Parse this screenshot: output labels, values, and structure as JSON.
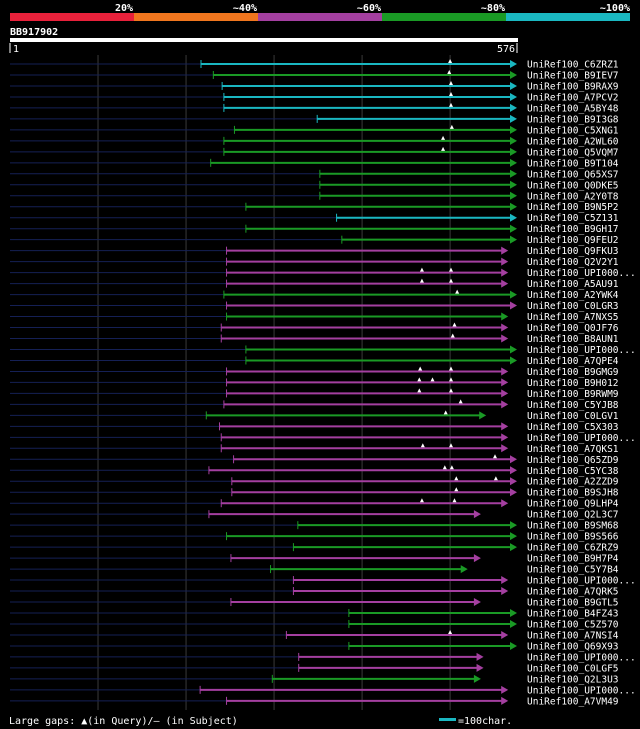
{
  "header": {
    "scale_labels": [
      "20%",
      "~40%",
      "~60%",
      "~80%",
      "~100%"
    ],
    "scale_colors": [
      "#e8213b",
      "#f0761e",
      "#a43fa0",
      "#1a9a25",
      "#1ab7c1"
    ],
    "query_id": "BB917902",
    "query_start": "1",
    "query_end": "576"
  },
  "footer": {
    "gaps_text": "Large gaps: ▲(in Query)/– (in Subject)",
    "scale_text": "=100char.",
    "scale_bar_color": "#1ab7c1"
  },
  "chart_data": {
    "type": "alignment-overview",
    "query_length": 576,
    "identity_colors": {
      "green": "#1a9a25",
      "cyan": "#1ab7c1",
      "magenta": "#a43fa0"
    },
    "hits": [
      {
        "id": "UniRef100_C6ZRZ1",
        "color": "cyan",
        "start": 217,
        "end": 576,
        "gaps": [
          500
        ]
      },
      {
        "id": "UniRef100_B9IEV7",
        "color": "green",
        "start": 231,
        "end": 576,
        "gaps": [
          499
        ]
      },
      {
        "id": "UniRef100_B9RAX9",
        "color": "cyan",
        "start": 241,
        "end": 576,
        "gaps": [
          501
        ]
      },
      {
        "id": "UniRef100_A7PCV2",
        "color": "cyan",
        "start": 243,
        "end": 576,
        "gaps": [
          501
        ]
      },
      {
        "id": "UniRef100_A5BY48",
        "color": "cyan",
        "start": 243,
        "end": 576,
        "gaps": [
          501
        ]
      },
      {
        "id": "UniRef100_B9I3G8",
        "color": "cyan",
        "start": 349,
        "end": 576,
        "gaps": []
      },
      {
        "id": "UniRef100_C5XNG1",
        "color": "green",
        "start": 255,
        "end": 576,
        "gaps": [
          502
        ]
      },
      {
        "id": "UniRef100_A2WL60",
        "color": "green",
        "start": 243,
        "end": 576,
        "gaps": [
          492
        ]
      },
      {
        "id": "UniRef100_Q5VQM7",
        "color": "green",
        "start": 243,
        "end": 576,
        "gaps": [
          492
        ]
      },
      {
        "id": "UniRef100_B9T104",
        "color": "green",
        "start": 228,
        "end": 576,
        "gaps": []
      },
      {
        "id": "UniRef100_Q65XS7",
        "color": "green",
        "start": 352,
        "end": 576,
        "gaps": []
      },
      {
        "id": "UniRef100_Q0DKE5",
        "color": "green",
        "start": 352,
        "end": 576,
        "gaps": []
      },
      {
        "id": "UniRef100_A2Y0T8",
        "color": "green",
        "start": 352,
        "end": 576,
        "gaps": []
      },
      {
        "id": "UniRef100_B9N5P2",
        "color": "green",
        "start": 268,
        "end": 576,
        "gaps": []
      },
      {
        "id": "UniRef100_C5Z131",
        "color": "cyan",
        "start": 371,
        "end": 576,
        "gaps": []
      },
      {
        "id": "UniRef100_B9GH17",
        "color": "green",
        "start": 268,
        "end": 576,
        "gaps": []
      },
      {
        "id": "UniRef100_Q9FEU2",
        "color": "green",
        "start": 377,
        "end": 576,
        "gaps": []
      },
      {
        "id": "UniRef100_Q9FKU3",
        "color": "magenta",
        "start": 246,
        "end": 566,
        "gaps": []
      },
      {
        "id": "UniRef100_Q2V2Y1",
        "color": "magenta",
        "start": 246,
        "end": 566,
        "gaps": []
      },
      {
        "id": "UniRef100_UPI000...",
        "color": "magenta",
        "start": 246,
        "end": 566,
        "gaps": [
          468,
          501
        ]
      },
      {
        "id": "UniRef100_A5AU91",
        "color": "magenta",
        "start": 246,
        "end": 566,
        "gaps": [
          468,
          501
        ]
      },
      {
        "id": "UniRef100_A2YWK4",
        "color": "green",
        "start": 243,
        "end": 576,
        "gaps": [
          508
        ]
      },
      {
        "id": "UniRef100_C0LGR3",
        "color": "magenta",
        "start": 246,
        "end": 576,
        "gaps": []
      },
      {
        "id": "UniRef100_A7NXS5",
        "color": "green",
        "start": 246,
        "end": 566,
        "gaps": []
      },
      {
        "id": "UniRef100_Q0JF76",
        "color": "magenta",
        "start": 240,
        "end": 566,
        "gaps": [
          505
        ]
      },
      {
        "id": "UniRef100_B8AUN1",
        "color": "magenta",
        "start": 240,
        "end": 566,
        "gaps": [
          503
        ]
      },
      {
        "id": "UniRef100_UPI000...",
        "color": "green",
        "start": 268,
        "end": 576,
        "gaps": []
      },
      {
        "id": "UniRef100_A7QPE4",
        "color": "green",
        "start": 268,
        "end": 576,
        "gaps": []
      },
      {
        "id": "UniRef100_B9GMG9",
        "color": "magenta",
        "start": 246,
        "end": 566,
        "gaps": [
          466,
          501
        ]
      },
      {
        "id": "UniRef100_B9H012",
        "color": "magenta",
        "start": 246,
        "end": 566,
        "gaps": [
          465,
          480,
          501
        ]
      },
      {
        "id": "UniRef100_B9RWM9",
        "color": "magenta",
        "start": 246,
        "end": 566,
        "gaps": [
          465,
          501
        ]
      },
      {
        "id": "UniRef100_C5YJB8",
        "color": "magenta",
        "start": 243,
        "end": 566,
        "gaps": [
          512
        ]
      },
      {
        "id": "UniRef100_C0LGV1",
        "color": "green",
        "start": 223,
        "end": 541,
        "gaps": [
          495
        ]
      },
      {
        "id": "UniRef100_C5X303",
        "color": "magenta",
        "start": 238,
        "end": 566,
        "gaps": []
      },
      {
        "id": "UniRef100_UPI000...",
        "color": "magenta",
        "start": 240,
        "end": 566,
        "gaps": []
      },
      {
        "id": "UniRef100_A7QKS1",
        "color": "magenta",
        "start": 240,
        "end": 566,
        "gaps": [
          469,
          501
        ]
      },
      {
        "id": "UniRef100_Q65ZD9",
        "color": "magenta",
        "start": 254,
        "end": 576,
        "gaps": [
          551
        ]
      },
      {
        "id": "UniRef100_C5YC38",
        "color": "magenta",
        "start": 226,
        "end": 576,
        "gaps": [
          494,
          502
        ]
      },
      {
        "id": "UniRef100_A2ZZD9",
        "color": "magenta",
        "start": 252,
        "end": 576,
        "gaps": [
          507,
          552
        ]
      },
      {
        "id": "UniRef100_B9SJH8",
        "color": "magenta",
        "start": 252,
        "end": 576,
        "gaps": [
          507
        ]
      },
      {
        "id": "UniRef100_Q9LHP4",
        "color": "magenta",
        "start": 240,
        "end": 566,
        "gaps": [
          468,
          505
        ]
      },
      {
        "id": "UniRef100_Q2L3C7",
        "color": "magenta",
        "start": 226,
        "end": 535,
        "gaps": []
      },
      {
        "id": "UniRef100_B9SM68",
        "color": "green",
        "start": 327,
        "end": 576,
        "gaps": []
      },
      {
        "id": "UniRef100_B9S566",
        "color": "green",
        "start": 246,
        "end": 576,
        "gaps": []
      },
      {
        "id": "UniRef100_C6ZRZ9",
        "color": "green",
        "start": 322,
        "end": 576,
        "gaps": []
      },
      {
        "id": "UniRef100_B9H7P4",
        "color": "magenta",
        "start": 251,
        "end": 535,
        "gaps": []
      },
      {
        "id": "UniRef100_C5Y7B4",
        "color": "green",
        "start": 296,
        "end": 520,
        "gaps": []
      },
      {
        "id": "UniRef100_UPI000...",
        "color": "magenta",
        "start": 322,
        "end": 566,
        "gaps": []
      },
      {
        "id": "UniRef100_A7QRK5",
        "color": "magenta",
        "start": 322,
        "end": 566,
        "gaps": []
      },
      {
        "id": "UniRef100_B9GTL5",
        "color": "magenta",
        "start": 251,
        "end": 535,
        "gaps": []
      },
      {
        "id": "UniRef100_B4FZ43",
        "color": "green",
        "start": 385,
        "end": 576,
        "gaps": []
      },
      {
        "id": "UniRef100_C5Z570",
        "color": "green",
        "start": 385,
        "end": 576,
        "gaps": []
      },
      {
        "id": "UniRef100_A7NSI4",
        "color": "magenta",
        "start": 314,
        "end": 566,
        "gaps": [
          500
        ]
      },
      {
        "id": "UniRef100_Q69X93",
        "color": "green",
        "start": 385,
        "end": 576,
        "gaps": []
      },
      {
        "id": "UniRef100_UPI000...",
        "color": "magenta",
        "start": 328,
        "end": 538,
        "gaps": []
      },
      {
        "id": "UniRef100_C0LGF5",
        "color": "magenta",
        "start": 328,
        "end": 538,
        "gaps": []
      },
      {
        "id": "UniRef100_Q2L3U3",
        "color": "green",
        "start": 298,
        "end": 535,
        "gaps": []
      },
      {
        "id": "UniRef100_UPI000...",
        "color": "magenta",
        "start": 216,
        "end": 566,
        "gaps": []
      },
      {
        "id": "UniRef100_A7VM49",
        "color": "magenta",
        "start": 246,
        "end": 566,
        "gaps": []
      }
    ]
  }
}
